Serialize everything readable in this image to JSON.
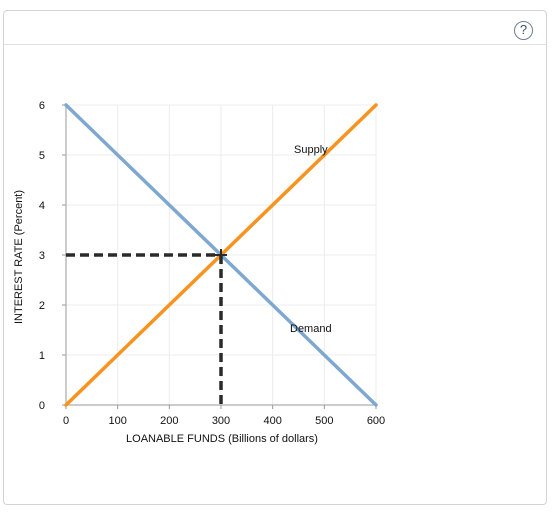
{
  "help_button": {
    "label": "?"
  },
  "chart_data": {
    "type": "line",
    "xlabel": "LOANABLE FUNDS (Billions of dollars)",
    "ylabel": "INTEREST RATE (Percent)",
    "xlim": [
      0,
      600
    ],
    "ylim": [
      0,
      6
    ],
    "x_ticks": [
      "0",
      "100",
      "200",
      "300",
      "400",
      "500",
      "600"
    ],
    "y_ticks": [
      "0",
      "1",
      "2",
      "3",
      "4",
      "5",
      "6"
    ],
    "grid": true,
    "series": [
      {
        "name": "Supply",
        "x": [
          0,
          600
        ],
        "y": [
          0,
          6
        ],
        "color": "#f7931e"
      },
      {
        "name": "Demand",
        "x": [
          0,
          600
        ],
        "y": [
          6,
          0
        ],
        "color": "#7fa8d1"
      }
    ],
    "equilibrium": {
      "x": 300,
      "y": 3,
      "line_color": "#2a2a2a"
    }
  }
}
